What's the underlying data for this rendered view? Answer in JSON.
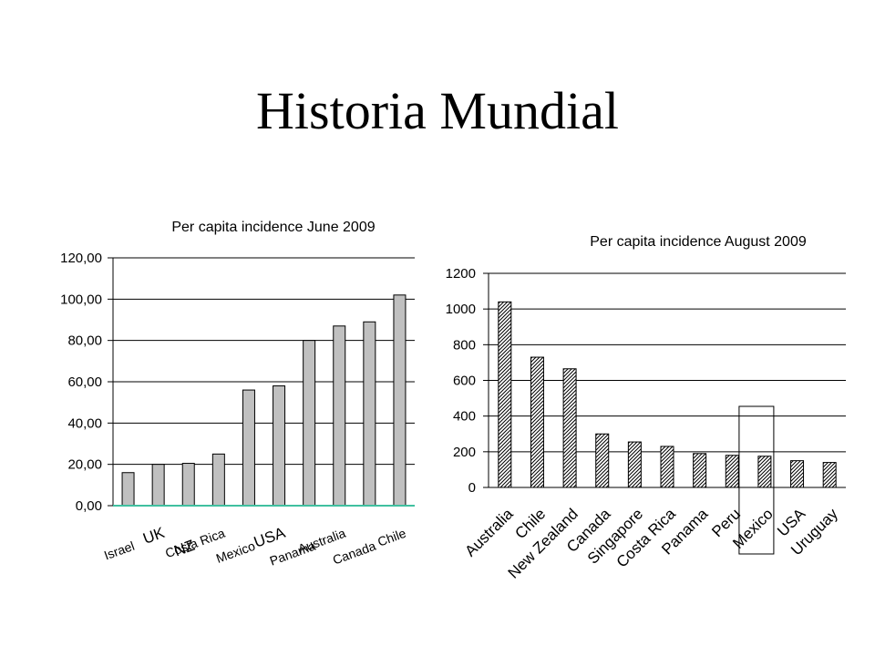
{
  "slide": {
    "title": "Historia Mundial"
  },
  "colors": {
    "bar_fill": "#c0c0c0",
    "axis": "#000000",
    "baseline_accent": "#40c0a0"
  },
  "chart_data": [
    {
      "type": "bar",
      "title": "Per capita incidence June 2009",
      "categories": [
        "Israel",
        "UK",
        "NZ",
        "Costa Rica",
        "Mexico",
        "USA",
        "Panama",
        "Australia",
        "Canada",
        "Chile"
      ],
      "values": [
        16,
        20,
        20.5,
        25,
        56,
        58,
        80,
        87,
        89,
        102
      ],
      "ylim": [
        0,
        120
      ],
      "yticks": [
        "0,00",
        "20,00",
        "40,00",
        "60,00",
        "80,00",
        "100,00",
        "120,00"
      ],
      "grid": true,
      "bar_style": "solid grey"
    },
    {
      "type": "bar",
      "title": "Per capita incidence August 2009",
      "categories": [
        "Australia",
        "Chile",
        "New Zealand",
        "Canada",
        "Singapore",
        "Costa Rica",
        "Panama",
        "Peru",
        "Mexico",
        "USA",
        "Uruguay"
      ],
      "values": [
        1040,
        730,
        665,
        300,
        255,
        230,
        190,
        180,
        175,
        150,
        140
      ],
      "ylim": [
        0,
        1200
      ],
      "yticks": [
        "0",
        "200",
        "400",
        "600",
        "800",
        "1000",
        "1200"
      ],
      "grid": true,
      "bar_style": "diagonal hatch",
      "highlight": "Mexico"
    }
  ]
}
